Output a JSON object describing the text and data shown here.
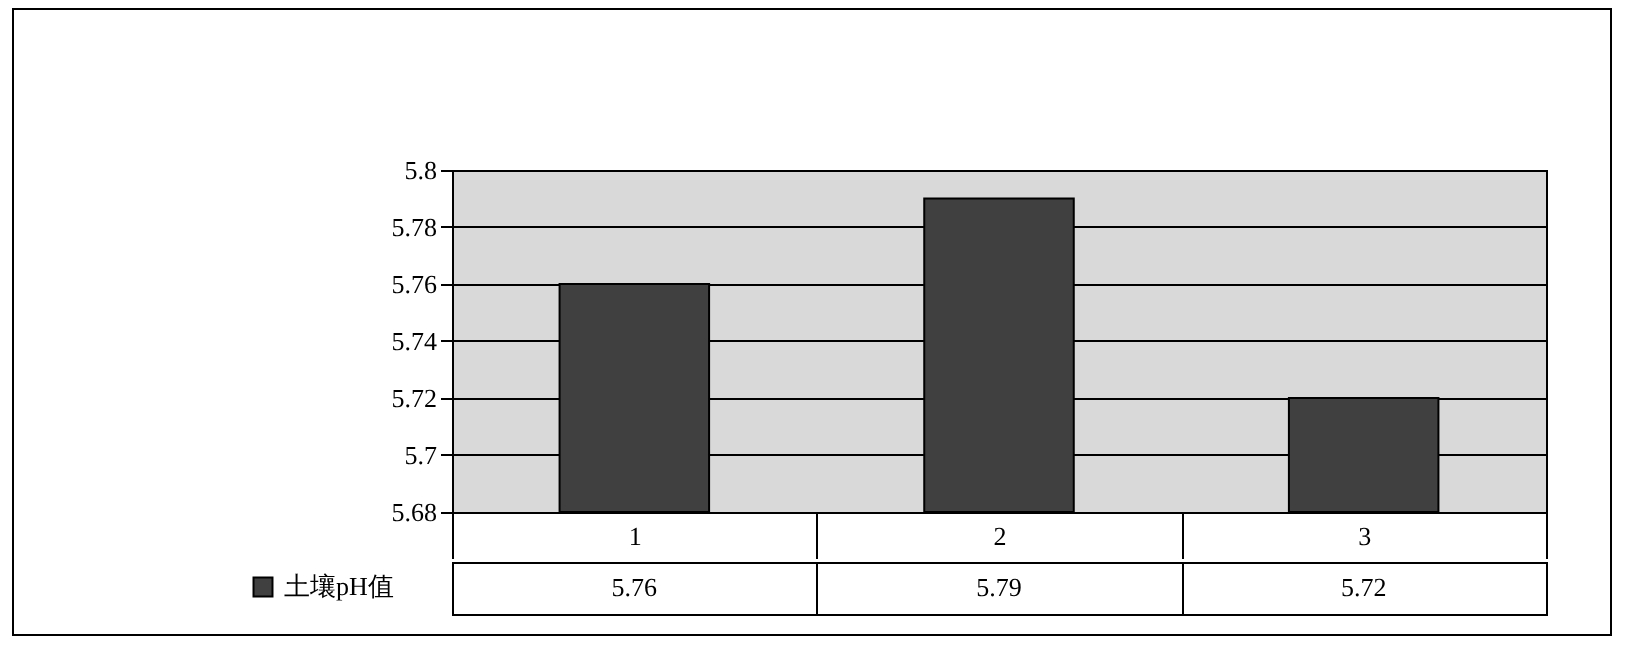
{
  "chart_data": {
    "type": "bar",
    "categories": [
      "1",
      "2",
      "3"
    ],
    "series": [
      {
        "name": "土壤pH值",
        "color": "#404040",
        "values": [
          5.76,
          5.79,
          5.72
        ]
      }
    ],
    "ylim": [
      5.68,
      5.8
    ],
    "yticks": [
      5.68,
      5.7,
      5.72,
      5.74,
      5.76,
      5.78,
      5.8
    ],
    "grid": "y",
    "legend": "bottom",
    "data_labels": true
  }
}
